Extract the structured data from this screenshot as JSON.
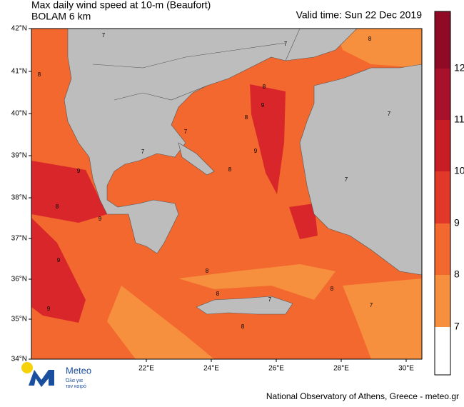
{
  "header": {
    "title": "Max daily wind speed at 10-m (Beaufort)",
    "subtitle": "BOLAM 6 km",
    "valid_time": "Valid time: Sun 22 Dec 2019"
  },
  "axes": {
    "lat_labels": [
      "42°N",
      "41°N",
      "40°N",
      "39°N",
      "38°N",
      "37°N",
      "36°N",
      "35°N",
      "34°N"
    ],
    "lon_labels": [
      "22°E",
      "24°E",
      "26°E",
      "28°E",
      "30°E"
    ]
  },
  "map": {
    "contour_labels": [
      "8",
      "7",
      "8",
      "8",
      "9",
      "8",
      "9",
      "7",
      "9",
      "8",
      "9",
      "7",
      "8",
      "9",
      "8",
      "8",
      "7",
      "8",
      "9",
      "8",
      "7",
      "7",
      "7",
      "7"
    ]
  },
  "colorbar": {
    "labels": [
      "12",
      "11",
      "10",
      "9",
      "8",
      "7"
    ],
    "colors": [
      "#8e0a25",
      "#a8112b",
      "#c71d25",
      "#e0392a",
      "#f2682e",
      "#f7903e",
      "#ffffff"
    ]
  },
  "logo": {
    "name": "Meteo",
    "tagline_1": "Όλα για",
    "tagline_2": "τον καιρό"
  },
  "footer": {
    "credit": "National Observatory of Athens, Greece - meteo.gr"
  }
}
